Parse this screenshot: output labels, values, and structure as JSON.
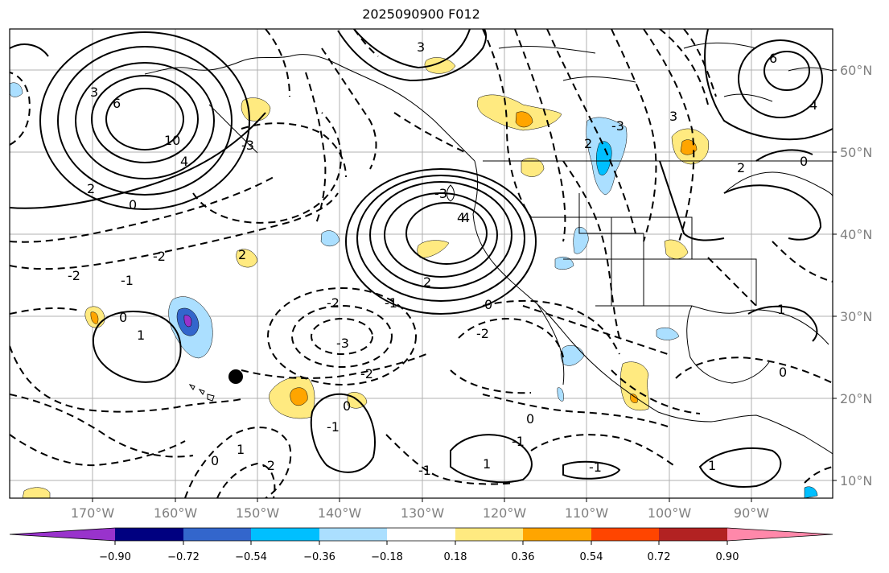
{
  "title": "2025090900 F012",
  "lon_labels": [
    "170°W",
    "160°W",
    "150°W",
    "140°W",
    "130°W",
    "120°W",
    "110°W",
    "100°W",
    "90°W"
  ],
  "lat_labels": [
    "60°N",
    "50°N",
    "40°N",
    "30°N",
    "20°N",
    "10°N"
  ],
  "colorbar": {
    "colors": [
      "#9933cc",
      "#000080",
      "#3366cc",
      "#00bfff",
      "#abdfff",
      "#ffffff",
      "#ffea80",
      "#ffa500",
      "#ff4500",
      "#b22222",
      "#ff88aa"
    ],
    "tick_labels": [
      "−0.90",
      "−0.72",
      "−0.54",
      "−0.36",
      "−0.18",
      "0.18",
      "0.36",
      "0.54",
      "0.72",
      "0.90"
    ]
  },
  "contour_labels": [
    "3",
    "6",
    "10",
    "4",
    "2",
    "0",
    "-3",
    "-2",
    "-1",
    "1",
    "0",
    "-2",
    "2",
    "3",
    "4",
    "-2",
    "-1",
    "-3",
    "-2",
    "0",
    "-1",
    "1",
    "0",
    "-2",
    "-1",
    "-1",
    "1",
    "-1",
    "0",
    "1",
    "2",
    "-2",
    "0",
    "-3",
    "3",
    "2",
    "4",
    "6",
    "4",
    "-3",
    "2",
    "0",
    "0",
    "1"
  ]
}
